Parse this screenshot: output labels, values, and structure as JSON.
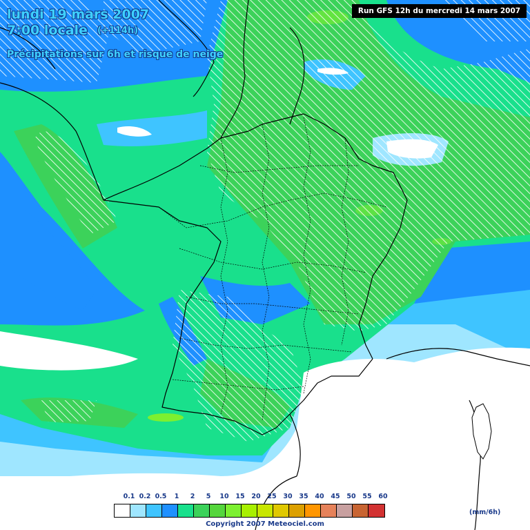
{
  "header": {
    "date_line": "lundi 19 mars 2007",
    "time_line": "7:00 locale",
    "lead_time": "(+114h)",
    "product_line": "Précipitations sur 6h et risque de neige",
    "run_info": "Run GFS 12h du mercredi 14 mars 2007"
  },
  "legend": {
    "unit": "(mm/6h)",
    "ticks": [
      "0.1",
      "0.2",
      "0.5",
      "1",
      "2",
      "5",
      "10",
      "15",
      "20",
      "25",
      "30",
      "35",
      "40",
      "45",
      "50",
      "55",
      "60"
    ],
    "colors": [
      "#ffffff",
      "#9fe6ff",
      "#3fc4ff",
      "#1e90ff",
      "#19e08c",
      "#3cd25a",
      "#55d63c",
      "#7df030",
      "#a8f000",
      "#c8e600",
      "#e0c800",
      "#dca000",
      "#ff9600",
      "#e6825a",
      "#c8a0a0",
      "#c86432",
      "#d23232"
    ]
  },
  "footer": {
    "copyright": "Copyright 2007 Meteociel.com"
  }
}
